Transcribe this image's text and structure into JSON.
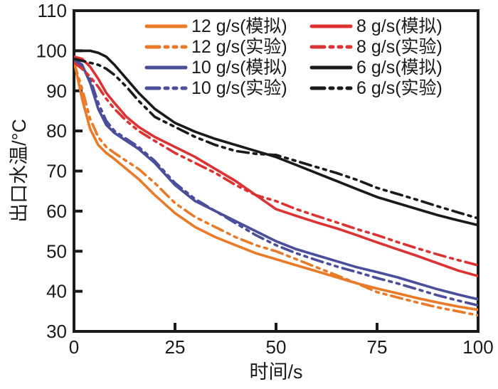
{
  "chart_data": {
    "type": "line",
    "title": "",
    "xlabel": "时间/s",
    "ylabel": "出口水温/°C",
    "xlim": [
      0,
      100
    ],
    "ylim": [
      30,
      110
    ],
    "x_ticks": [
      0,
      25,
      50,
      75,
      100
    ],
    "y_ticks": [
      30,
      40,
      50,
      60,
      70,
      80,
      90,
      100,
      110
    ],
    "grid": false,
    "legend_position": "top-inside-two-columns",
    "axis_color": "#1a1a1a",
    "x": [
      0,
      2,
      4,
      6,
      8,
      10,
      13,
      16,
      20,
      25,
      30,
      35,
      40,
      45,
      50,
      55,
      60,
      65,
      70,
      75,
      80,
      85,
      90,
      95,
      100
    ],
    "series": [
      {
        "id": "12gs-sim",
        "name": "12 g/s(模拟)",
        "color": "#E87A28",
        "style": "solid",
        "values": [
          97.5,
          88,
          80.5,
          76.5,
          74.5,
          73,
          70.5,
          68,
          64,
          59.5,
          56,
          53.5,
          51.5,
          49.5,
          48,
          46.5,
          45,
          43.5,
          42,
          40.7,
          39.5,
          38.3,
          37.2,
          36.2,
          35.4
        ]
      },
      {
        "id": "12gs-exp",
        "name": "12 g/s(实验)",
        "color": "#E87A28",
        "style": "dashdot",
        "values": [
          97,
          90.5,
          83,
          78.5,
          76,
          74.5,
          72.5,
          70.5,
          67,
          62,
          58.5,
          56,
          53.5,
          51.5,
          50,
          48,
          46,
          44,
          42,
          39.8,
          38.5,
          37.2,
          36,
          35,
          34
        ]
      },
      {
        "id": "10gs-sim",
        "name": "10 g/s(模拟)",
        "color": "#4A4E9B",
        "style": "solid",
        "values": [
          98,
          96.5,
          92,
          85.5,
          81.5,
          79.5,
          77.5,
          75.5,
          72,
          66.5,
          62.5,
          60,
          57.5,
          55,
          52.5,
          50.5,
          49,
          47.5,
          46,
          44.8,
          43.5,
          42,
          40.5,
          39.2,
          38
        ]
      },
      {
        "id": "10gs-exp",
        "name": "10 g/s(实验)",
        "color": "#4A4E9B",
        "style": "dashdot",
        "values": [
          97.5,
          96,
          93,
          87,
          82.5,
          80,
          78,
          76,
          72.5,
          67,
          63,
          60,
          57,
          54,
          51.5,
          49.5,
          47.8,
          46.2,
          44.8,
          43.3,
          42,
          40.5,
          39,
          37.7,
          36.5
        ]
      },
      {
        "id": "8gs-sim",
        "name": "8 g/s(模拟)",
        "color": "#DC3231",
        "style": "solid",
        "values": [
          98.5,
          98,
          96,
          93,
          89.5,
          87,
          83.5,
          81,
          78.5,
          76,
          73.5,
          70.5,
          67.5,
          64,
          60.5,
          58.8,
          57.2,
          55.7,
          54,
          52.2,
          50.5,
          48.8,
          47,
          45.2,
          43.8
        ]
      },
      {
        "id": "8gs-exp",
        "name": "8 g/s(实验)",
        "color": "#DC3231",
        "style": "dashdot",
        "values": [
          97,
          95.5,
          93.5,
          91,
          88,
          85.5,
          82.5,
          80,
          77.5,
          74.5,
          72,
          69.5,
          66.5,
          64,
          62.5,
          60.5,
          58.8,
          57.2,
          55.5,
          54,
          52.3,
          50.7,
          49.2,
          47.8,
          46.5
        ]
      },
      {
        "id": "6gs-sim",
        "name": "6 g/s(模拟)",
        "color": "#1a1a1a",
        "style": "solid",
        "values": [
          100,
          100,
          100,
          99.5,
          98.5,
          96.5,
          93,
          89.5,
          85.5,
          82,
          79.8,
          78,
          76.5,
          75,
          73.5,
          71.5,
          69.5,
          67.5,
          65.5,
          63.5,
          62,
          60.5,
          59,
          57.7,
          56.5
        ]
      },
      {
        "id": "6gs-exp",
        "name": "6 g/s(实验)",
        "color": "#1a1a1a",
        "style": "dashdot",
        "values": [
          98,
          97.5,
          97,
          96.5,
          95.5,
          94,
          91,
          87.5,
          83.5,
          81,
          78.5,
          76.5,
          75,
          74.3,
          74,
          72.5,
          71,
          69.5,
          67.8,
          65.8,
          64.3,
          62.8,
          61.2,
          59.7,
          58.2
        ]
      }
    ],
    "legend_columns": [
      [
        0,
        1,
        2,
        3
      ],
      [
        4,
        5,
        6,
        7
      ]
    ]
  }
}
